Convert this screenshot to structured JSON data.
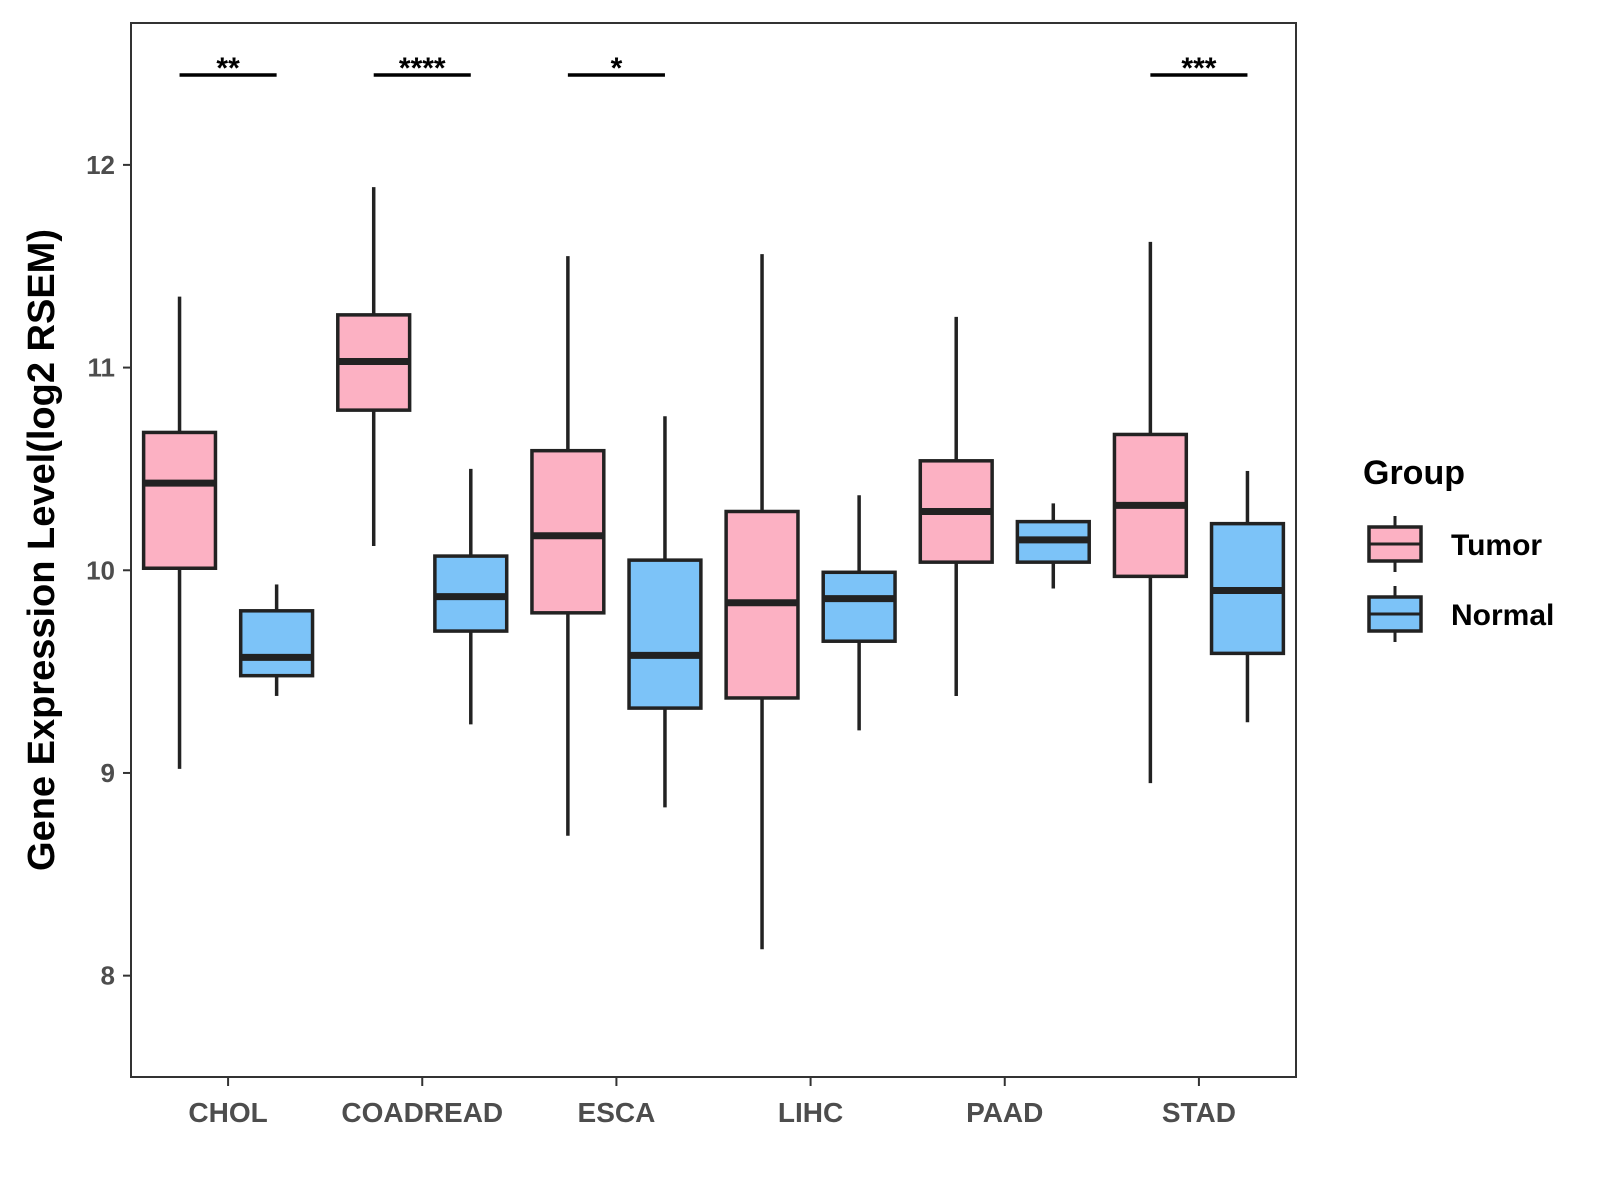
{
  "chart_data": {
    "type": "boxplot",
    "title": "",
    "xlabel": "",
    "ylabel": "Gene Expression Level(log2 RSEM)",
    "ylim": [
      7.5,
      12.7
    ],
    "yticks": [
      "8",
      "9",
      "10",
      "11",
      "12"
    ],
    "categories": [
      "CHOL",
      "COADREAD",
      "ESCA",
      "LIHC",
      "PAAD",
      "STAD"
    ],
    "legend": {
      "title": "Group",
      "position": "right",
      "items": [
        {
          "name": "Tumor",
          "color": "#fcb1c3"
        },
        {
          "name": "Normal",
          "color": "#7cc3f8"
        }
      ]
    },
    "series": [
      {
        "name": "Tumor",
        "color": "#fcb1c3",
        "boxes": [
          {
            "min": 9.02,
            "q1": 10.01,
            "median": 10.43,
            "q3": 10.68,
            "max": 11.35
          },
          {
            "min": 10.12,
            "q1": 10.79,
            "median": 11.03,
            "q3": 11.26,
            "max": 11.89
          },
          {
            "min": 8.69,
            "q1": 9.79,
            "median": 10.17,
            "q3": 10.59,
            "max": 11.55
          },
          {
            "min": 8.13,
            "q1": 9.37,
            "median": 9.84,
            "q3": 10.29,
            "max": 11.56
          },
          {
            "min": 9.38,
            "q1": 10.04,
            "median": 10.29,
            "q3": 10.54,
            "max": 11.25
          },
          {
            "min": 8.95,
            "q1": 9.97,
            "median": 10.32,
            "q3": 10.67,
            "max": 11.62
          }
        ]
      },
      {
        "name": "Normal",
        "color": "#7cc3f8",
        "boxes": [
          {
            "min": 9.38,
            "q1": 9.48,
            "median": 9.57,
            "q3": 9.8,
            "max": 9.93
          },
          {
            "min": 9.24,
            "q1": 9.7,
            "median": 9.87,
            "q3": 10.07,
            "max": 10.5
          },
          {
            "min": 8.83,
            "q1": 9.32,
            "median": 9.58,
            "q3": 10.05,
            "max": 10.76
          },
          {
            "min": 9.21,
            "q1": 9.65,
            "median": 9.86,
            "q3": 9.99,
            "max": 10.37
          },
          {
            "min": 9.91,
            "q1": 10.04,
            "median": 10.15,
            "q3": 10.24,
            "max": 10.33
          },
          {
            "min": 9.25,
            "q1": 9.59,
            "median": 9.9,
            "q3": 10.23,
            "max": 10.49
          }
        ]
      }
    ],
    "significance": [
      {
        "category": "CHOL",
        "label": "**"
      },
      {
        "category": "COADREAD",
        "label": "****"
      },
      {
        "category": "ESCA",
        "label": "*"
      },
      {
        "category": "STAD",
        "label": "***"
      }
    ]
  }
}
